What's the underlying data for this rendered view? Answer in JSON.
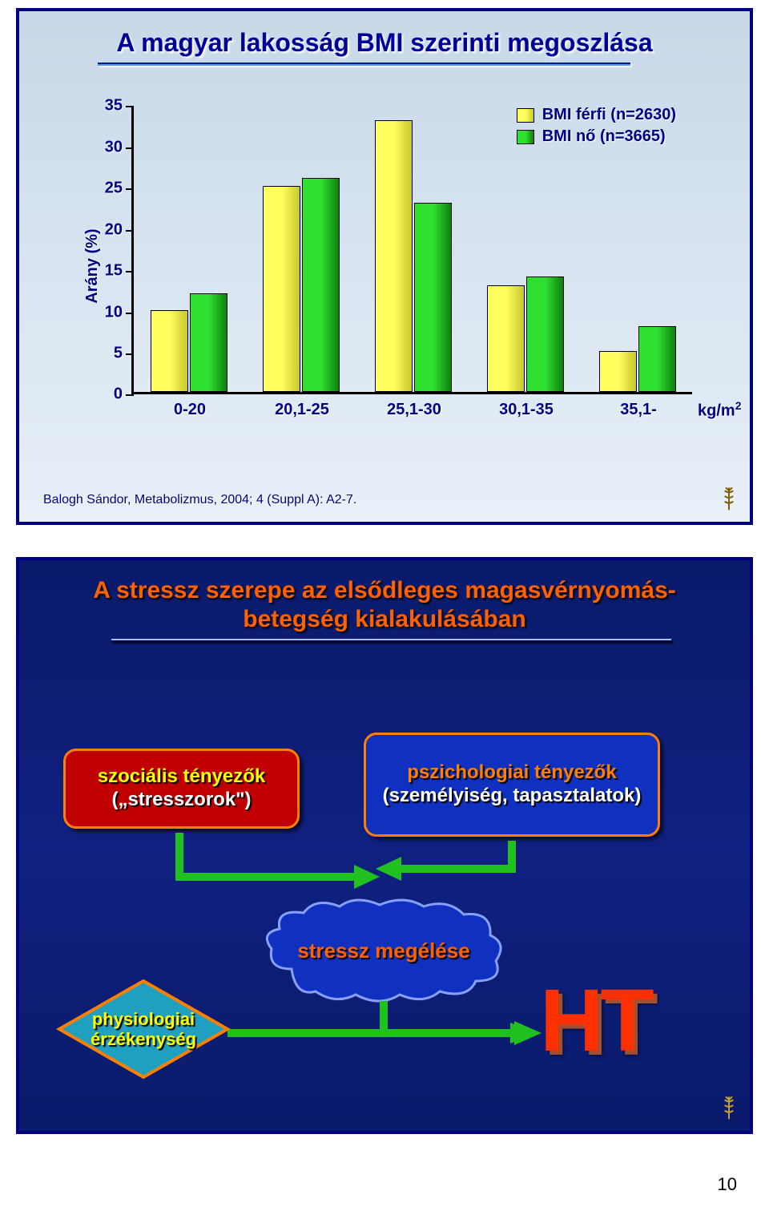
{
  "page_number": "10",
  "slide1": {
    "title": "A magyar lakosság BMI szerinti megoszlása",
    "citation": "Balogh Sándor, Metabolizmus, 2004; 4 (Suppl A): A2-7.",
    "chart": {
      "type": "bar",
      "y_axis_label": "Arány (%)",
      "x_unit": "kg/m²",
      "categories": [
        "0-20",
        "20,1-25",
        "25,1-30",
        "30,1-35",
        "35,1-"
      ],
      "series": [
        {
          "name": "BMI férfi (n=2630)",
          "color": "#ffff40",
          "values": [
            10,
            25,
            33,
            13,
            5
          ]
        },
        {
          "name": "BMI nő (n=3665)",
          "color": "#20c020",
          "values": [
            12,
            26,
            23,
            14,
            8
          ]
        }
      ],
      "ylim": [
        0,
        35
      ],
      "ytick_step": 5,
      "y_ticks": [
        0,
        5,
        10,
        15,
        20,
        25,
        30,
        35
      ],
      "background_color": "#d8e4ef",
      "axis_color": "#000000",
      "label_color": "#000080",
      "label_fontsize": 20,
      "bar_group_width": 0.7
    }
  },
  "slide2": {
    "title": "A stressz szerepe az elsődleges magasvérnyomás-betegség kialakulásában",
    "box_social": {
      "line1": "szociális tényezők",
      "line2": "(„stresszorok\")",
      "bg": "#c00000",
      "border": "#ff8000",
      "text1": "#ffff00",
      "text2": "#ffffff"
    },
    "box_psych": {
      "line1": "pszichologiai tényezők",
      "line2": "(személyiség, tapasztalatok)",
      "bg": "#1030c0",
      "border": "#ff8000",
      "text1": "#ff8000",
      "text2": "#ffffff"
    },
    "cloud": {
      "text": "stressz megélése",
      "fill": "#1030c0",
      "stroke": "#88a0ff",
      "text_color": "#ff6000"
    },
    "diamond": {
      "line1": "physiologiai",
      "line2": "érzékenység",
      "fill": "#20a0c0",
      "stroke": "#ff8000",
      "text_color": "#ffff00"
    },
    "ht": {
      "text": "HT",
      "color": "#ff3000"
    },
    "arrow_color": "#20c020",
    "background_color": "#0f1f78"
  }
}
